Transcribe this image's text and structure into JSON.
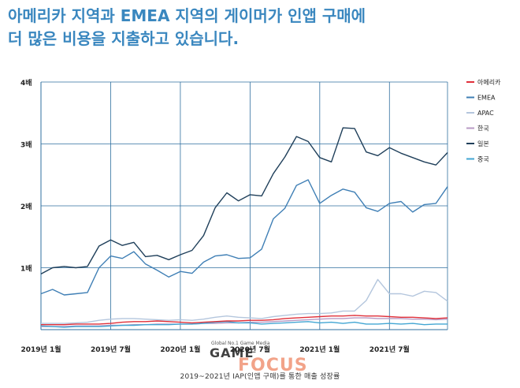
{
  "headline": {
    "line1": "아메리카 지역과 EMEA 지역의 게이머가 인앱 구매에",
    "line2": "더 많은 비용을 지출하고 있습니다."
  },
  "caption": "2019~2021년 IAP(인앱 구매)를 통한 매출 성장률",
  "watermark": {
    "tagline": "Global No.1 Game Media",
    "word1": "GAME",
    "word2": "FOCUS"
  },
  "chart_data": {
    "type": "line",
    "x_tick_labels": [
      "2019년 1월",
      "2019년 7월",
      "2020년 1월",
      "2020년 7월",
      "2021년 1월",
      "2021년 7월"
    ],
    "y_tick_labels": [
      "4배",
      "3배",
      "2배",
      "1배"
    ],
    "y_tick_values": [
      4,
      3,
      2,
      1
    ],
    "ylim": [
      0,
      4
    ],
    "xlim": [
      0,
      35
    ],
    "grid": true,
    "legend_position": "right",
    "series": [
      {
        "name": "아메리카",
        "color": "#e0303a",
        "values": [
          0.08,
          0.08,
          0.08,
          0.09,
          0.09,
          0.09,
          0.1,
          0.12,
          0.13,
          0.13,
          0.14,
          0.13,
          0.12,
          0.11,
          0.12,
          0.13,
          0.14,
          0.14,
          0.15,
          0.15,
          0.16,
          0.18,
          0.19,
          0.2,
          0.21,
          0.22,
          0.22,
          0.23,
          0.22,
          0.22,
          0.21,
          0.2,
          0.2,
          0.19,
          0.18,
          0.19
        ]
      },
      {
        "name": "EMEA",
        "color": "#3f7fb5",
        "values": [
          0.58,
          0.65,
          0.56,
          0.58,
          0.6,
          1.0,
          1.19,
          1.15,
          1.26,
          1.06,
          0.96,
          0.85,
          0.94,
          0.91,
          1.09,
          1.19,
          1.21,
          1.15,
          1.16,
          1.3,
          1.79,
          1.96,
          2.33,
          2.42,
          2.04,
          2.17,
          2.27,
          2.22,
          1.97,
          1.91,
          2.04,
          2.07,
          1.9,
          2.02,
          2.04,
          2.31
        ]
      },
      {
        "name": "APAC",
        "color": "#b4c6dd",
        "values": [
          0.1,
          0.1,
          0.1,
          0.11,
          0.12,
          0.15,
          0.17,
          0.18,
          0.18,
          0.17,
          0.16,
          0.15,
          0.16,
          0.15,
          0.17,
          0.2,
          0.22,
          0.2,
          0.19,
          0.18,
          0.21,
          0.23,
          0.25,
          0.26,
          0.26,
          0.27,
          0.3,
          0.3,
          0.47,
          0.81,
          0.58,
          0.58,
          0.54,
          0.62,
          0.6,
          0.46
        ]
      },
      {
        "name": "한국",
        "color": "#b89ac4",
        "values": [
          0.05,
          0.05,
          0.05,
          0.06,
          0.06,
          0.06,
          0.07,
          0.07,
          0.08,
          0.08,
          0.09,
          0.09,
          0.09,
          0.09,
          0.1,
          0.1,
          0.11,
          0.11,
          0.12,
          0.12,
          0.13,
          0.14,
          0.15,
          0.16,
          0.17,
          0.18,
          0.18,
          0.19,
          0.19,
          0.18,
          0.18,
          0.18,
          0.17,
          0.17,
          0.16,
          0.17
        ]
      },
      {
        "name": "일본",
        "color": "#1f3f5a",
        "values": [
          0.9,
          1.0,
          1.02,
          1.0,
          1.02,
          1.35,
          1.45,
          1.36,
          1.41,
          1.18,
          1.2,
          1.13,
          1.21,
          1.28,
          1.52,
          1.97,
          2.21,
          2.08,
          2.18,
          2.16,
          2.52,
          2.79,
          3.12,
          3.04,
          2.78,
          2.71,
          3.26,
          3.25,
          2.87,
          2.81,
          2.94,
          2.85,
          2.78,
          2.71,
          2.66,
          2.86
        ]
      },
      {
        "name": "중국",
        "color": "#42a6d3",
        "values": [
          0.06,
          0.05,
          0.04,
          0.05,
          0.05,
          0.05,
          0.06,
          0.07,
          0.07,
          0.08,
          0.08,
          0.08,
          0.09,
          0.09,
          0.1,
          0.12,
          0.13,
          0.11,
          0.11,
          0.09,
          0.1,
          0.11,
          0.12,
          0.13,
          0.11,
          0.12,
          0.1,
          0.12,
          0.09,
          0.09,
          0.1,
          0.09,
          0.1,
          0.08,
          0.09,
          0.09
        ]
      }
    ]
  }
}
